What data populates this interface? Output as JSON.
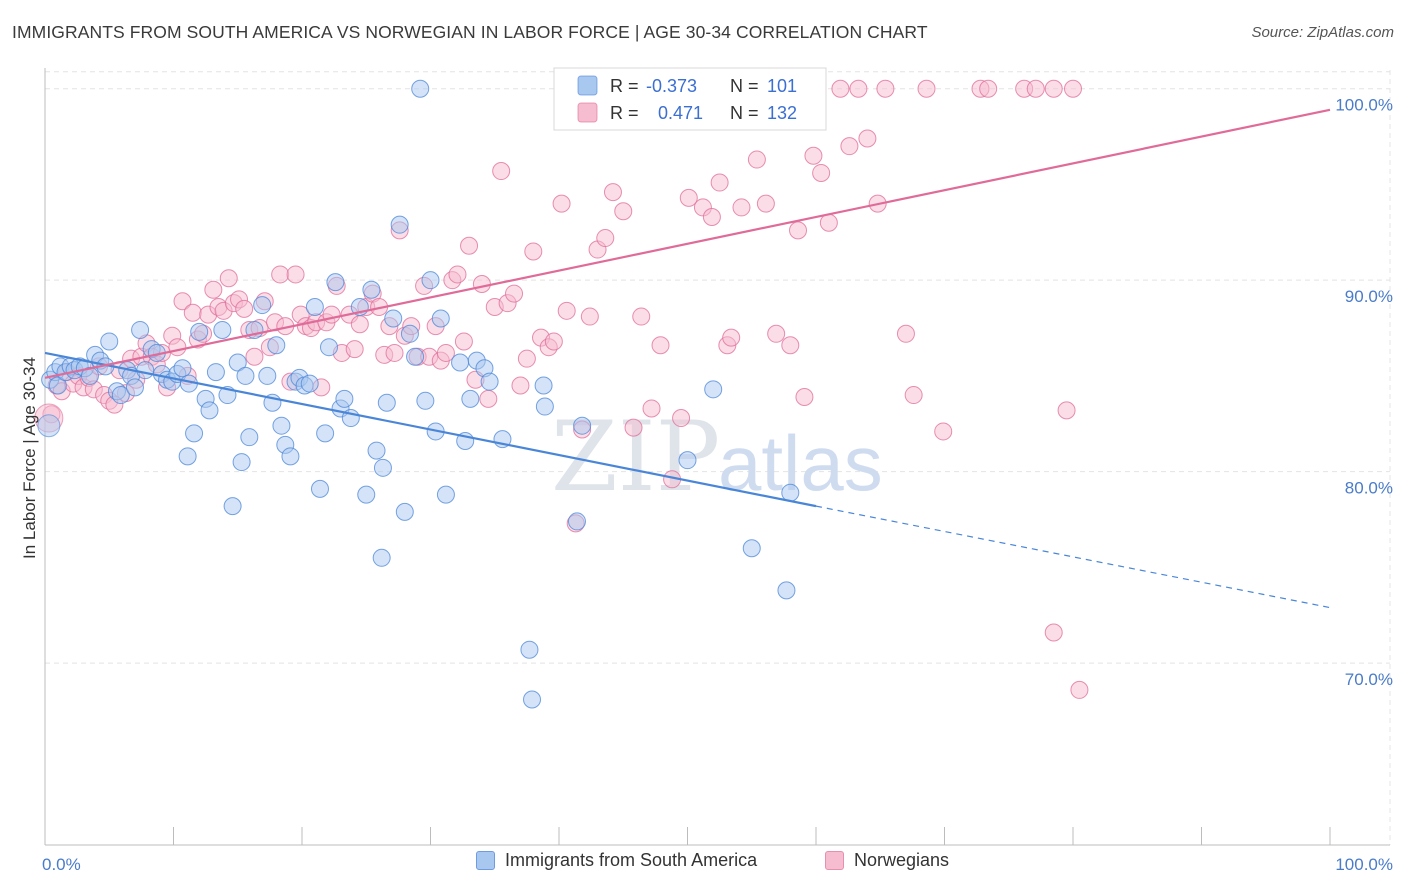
{
  "title": "IMMIGRANTS FROM SOUTH AMERICA VS NORWEGIAN IN LABOR FORCE | AGE 30-34 CORRELATION CHART",
  "source": "Source: ZipAtlas.com",
  "watermark": {
    "zip": "ZIP",
    "atlas": "atlas"
  },
  "colors": {
    "blue": "#4a86d8",
    "blue_fill": "#a9c8f0",
    "pink": "#e06b98",
    "pink_fill": "#f6bcd0",
    "tick": "#4a7cc9"
  },
  "legend": {
    "blue": {
      "r_label": "R =",
      "r_value": "-0.373",
      "n_label": "N =",
      "n_value": "101"
    },
    "pink": {
      "r_label": "R =",
      "r_value": "0.471",
      "n_label": "N =",
      "n_value": "132"
    }
  },
  "chart_data": {
    "type": "scatter",
    "xlabel": "",
    "ylabel": "In Labor Force | Age 30-34",
    "x_tick_labels": [
      "0.0%",
      "100.0%"
    ],
    "y_tick_labels": [
      "70.0%",
      "80.0%",
      "90.0%",
      "100.0%"
    ],
    "xlim": [
      0,
      100
    ],
    "ylim": [
      60.5,
      101.5
    ],
    "y_ticks": [
      70,
      80,
      90,
      100
    ],
    "grid": true,
    "legend_placement": "top-center",
    "series": [
      {
        "name": "Immigrants from South America",
        "color": "#4a86d8",
        "r": -0.373,
        "n": 101,
        "trend": {
          "x0": 0,
          "y0": 86.2,
          "x1": 60,
          "y1": 78.2,
          "dashed_to_x": 100,
          "dashed_to_y": 72.9
        },
        "points": [
          [
            0.4,
            84.8
          ],
          [
            0.8,
            85.2
          ],
          [
            1.0,
            84.5
          ],
          [
            1.2,
            85.5
          ],
          [
            1.6,
            85.2
          ],
          [
            2.0,
            85.5
          ],
          [
            2.3,
            85.3
          ],
          [
            2.7,
            85.5
          ],
          [
            3.1,
            85.4
          ],
          [
            3.5,
            85.0
          ],
          [
            3.9,
            86.1
          ],
          [
            4.3,
            85.8
          ],
          [
            4.7,
            85.5
          ],
          [
            5.0,
            86.8
          ],
          [
            5.6,
            84.2
          ],
          [
            5.9,
            84.0
          ],
          [
            6.4,
            85.3
          ],
          [
            6.7,
            85.0
          ],
          [
            7.0,
            84.4
          ],
          [
            7.4,
            87.4
          ],
          [
            7.8,
            85.3
          ],
          [
            8.3,
            86.4
          ],
          [
            8.7,
            86.2
          ],
          [
            9.1,
            85.1
          ],
          [
            9.5,
            84.8
          ],
          [
            9.9,
            84.7
          ],
          [
            10.3,
            85.1
          ],
          [
            10.7,
            85.4
          ],
          [
            11.2,
            84.6
          ],
          [
            11.6,
            82.0
          ],
          [
            11.1,
            80.8
          ],
          [
            12.0,
            87.3
          ],
          [
            12.5,
            83.8
          ],
          [
            12.8,
            83.2
          ],
          [
            13.3,
            85.2
          ],
          [
            13.8,
            87.4
          ],
          [
            14.2,
            84.0
          ],
          [
            14.6,
            78.2
          ],
          [
            15.0,
            85.7
          ],
          [
            15.3,
            80.5
          ],
          [
            15.6,
            85.0
          ],
          [
            15.9,
            81.8
          ],
          [
            16.3,
            87.4
          ],
          [
            16.9,
            88.7
          ],
          [
            17.3,
            85.0
          ],
          [
            17.7,
            83.6
          ],
          [
            18.0,
            86.6
          ],
          [
            18.4,
            82.4
          ],
          [
            18.7,
            81.4
          ],
          [
            19.1,
            80.8
          ],
          [
            19.5,
            84.7
          ],
          [
            19.8,
            84.9
          ],
          [
            20.2,
            84.5
          ],
          [
            20.6,
            84.6
          ],
          [
            21.0,
            88.6
          ],
          [
            21.4,
            79.1
          ],
          [
            21.8,
            82.0
          ],
          [
            22.1,
            86.5
          ],
          [
            22.6,
            89.9
          ],
          [
            23.0,
            83.3
          ],
          [
            23.3,
            83.8
          ],
          [
            23.8,
            82.8
          ],
          [
            24.5,
            88.6
          ],
          [
            25.0,
            78.8
          ],
          [
            25.4,
            89.5
          ],
          [
            25.8,
            81.1
          ],
          [
            26.2,
            75.5
          ],
          [
            26.3,
            80.2
          ],
          [
            26.6,
            83.6
          ],
          [
            27.1,
            88.0
          ],
          [
            27.6,
            92.9
          ],
          [
            28.0,
            77.9
          ],
          [
            28.4,
            87.2
          ],
          [
            28.8,
            86.0
          ],
          [
            29.2,
            100.0
          ],
          [
            29.6,
            83.7
          ],
          [
            30.0,
            90.0
          ],
          [
            30.4,
            82.1
          ],
          [
            30.8,
            88.0
          ],
          [
            31.2,
            78.8
          ],
          [
            32.3,
            85.7
          ],
          [
            32.7,
            81.6
          ],
          [
            33.1,
            83.8
          ],
          [
            33.6,
            85.8
          ],
          [
            34.2,
            85.4
          ],
          [
            34.6,
            84.7
          ],
          [
            35.6,
            81.7
          ],
          [
            37.7,
            70.7
          ],
          [
            37.9,
            68.1
          ],
          [
            38.8,
            84.5
          ],
          [
            38.9,
            83.4
          ],
          [
            41.4,
            77.4
          ],
          [
            41.8,
            82.4
          ],
          [
            50.0,
            80.6
          ],
          [
            52.0,
            84.3
          ],
          [
            55.0,
            76.0
          ],
          [
            57.7,
            73.8
          ],
          [
            58.0,
            78.9
          ]
        ]
      },
      {
        "name": "Norwegians",
        "color": "#e06b98",
        "r": 0.471,
        "n": 132,
        "trend": {
          "x0": 0,
          "y0": 84.9,
          "x1": 100,
          "y1": 98.9
        },
        "points": [
          [
            0.5,
            83.0
          ],
          [
            0.9,
            84.5
          ],
          [
            1.3,
            84.2
          ],
          [
            1.7,
            85.2
          ],
          [
            2.2,
            84.6
          ],
          [
            2.6,
            85.0
          ],
          [
            3.0,
            84.4
          ],
          [
            3.4,
            84.9
          ],
          [
            3.8,
            84.3
          ],
          [
            4.2,
            85.5
          ],
          [
            4.6,
            84.0
          ],
          [
            5.0,
            83.7
          ],
          [
            5.4,
            83.5
          ],
          [
            5.8,
            85.3
          ],
          [
            6.3,
            84.1
          ],
          [
            6.7,
            85.9
          ],
          [
            7.1,
            84.8
          ],
          [
            7.5,
            86.0
          ],
          [
            7.9,
            86.7
          ],
          [
            8.3,
            86.0
          ],
          [
            8.7,
            85.6
          ],
          [
            9.1,
            86.2
          ],
          [
            9.5,
            84.4
          ],
          [
            9.9,
            87.1
          ],
          [
            10.3,
            86.5
          ],
          [
            10.7,
            88.9
          ],
          [
            11.1,
            85.0
          ],
          [
            11.5,
            88.3
          ],
          [
            11.9,
            86.9
          ],
          [
            12.3,
            87.2
          ],
          [
            12.7,
            88.2
          ],
          [
            13.1,
            89.5
          ],
          [
            13.5,
            88.6
          ],
          [
            13.9,
            88.4
          ],
          [
            14.3,
            90.1
          ],
          [
            14.7,
            88.8
          ],
          [
            15.1,
            89.0
          ],
          [
            15.5,
            88.5
          ],
          [
            15.9,
            87.4
          ],
          [
            16.3,
            86.0
          ],
          [
            16.7,
            87.5
          ],
          [
            17.1,
            88.9
          ],
          [
            17.5,
            86.5
          ],
          [
            17.9,
            87.8
          ],
          [
            18.3,
            90.3
          ],
          [
            18.7,
            87.6
          ],
          [
            19.1,
            84.7
          ],
          [
            19.5,
            90.3
          ],
          [
            19.9,
            88.2
          ],
          [
            20.3,
            87.6
          ],
          [
            20.7,
            87.5
          ],
          [
            21.1,
            87.8
          ],
          [
            21.5,
            84.4
          ],
          [
            21.9,
            87.8
          ],
          [
            22.3,
            88.2
          ],
          [
            22.7,
            89.7
          ],
          [
            23.1,
            86.2
          ],
          [
            23.7,
            88.2
          ],
          [
            24.1,
            86.4
          ],
          [
            24.5,
            87.7
          ],
          [
            25.0,
            88.6
          ],
          [
            25.5,
            89.3
          ],
          [
            26.0,
            88.6
          ],
          [
            26.4,
            86.1
          ],
          [
            26.8,
            87.6
          ],
          [
            27.2,
            86.2
          ],
          [
            27.6,
            92.6
          ],
          [
            28.0,
            87.1
          ],
          [
            28.5,
            87.6
          ],
          [
            29.0,
            86.0
          ],
          [
            29.5,
            89.7
          ],
          [
            29.9,
            86.0
          ],
          [
            30.4,
            87.6
          ],
          [
            30.8,
            85.8
          ],
          [
            31.2,
            86.2
          ],
          [
            31.7,
            90.0
          ],
          [
            32.1,
            90.3
          ],
          [
            32.6,
            86.8
          ],
          [
            33.0,
            91.8
          ],
          [
            33.5,
            84.8
          ],
          [
            34.0,
            89.8
          ],
          [
            34.5,
            83.8
          ],
          [
            35.0,
            88.6
          ],
          [
            35.5,
            95.7
          ],
          [
            36.0,
            88.8
          ],
          [
            36.5,
            89.3
          ],
          [
            37.0,
            84.5
          ],
          [
            37.5,
            85.9
          ],
          [
            38.0,
            91.5
          ],
          [
            38.6,
            87.0
          ],
          [
            39.2,
            86.5
          ],
          [
            39.6,
            86.8
          ],
          [
            40.2,
            94.0
          ],
          [
            40.6,
            88.4
          ],
          [
            41.3,
            77.3
          ],
          [
            41.8,
            82.2
          ],
          [
            42.4,
            88.1
          ],
          [
            43.0,
            91.6
          ],
          [
            43.6,
            92.2
          ],
          [
            44.2,
            94.6
          ],
          [
            45.0,
            93.6
          ],
          [
            45.8,
            82.3
          ],
          [
            46.4,
            88.1
          ],
          [
            47.2,
            83.3
          ],
          [
            47.9,
            86.6
          ],
          [
            48.8,
            79.6
          ],
          [
            49.5,
            82.8
          ],
          [
            50.1,
            94.3
          ],
          [
            51.2,
            93.8
          ],
          [
            51.9,
            93.3
          ],
          [
            52.5,
            95.1
          ],
          [
            53.1,
            86.6
          ],
          [
            53.4,
            87.0
          ],
          [
            54.2,
            93.8
          ],
          [
            55.4,
            96.3
          ],
          [
            56.1,
            94.0
          ],
          [
            56.9,
            87.2
          ],
          [
            58.0,
            86.6
          ],
          [
            58.6,
            92.6
          ],
          [
            59.1,
            83.9
          ],
          [
            59.8,
            96.5
          ],
          [
            60.4,
            95.6
          ],
          [
            61.0,
            93.0
          ],
          [
            61.9,
            100.0
          ],
          [
            62.6,
            97.0
          ],
          [
            63.3,
            100.0
          ],
          [
            64.0,
            97.4
          ],
          [
            64.8,
            94.0
          ],
          [
            65.4,
            100.0
          ],
          [
            67.0,
            87.2
          ],
          [
            67.6,
            84.0
          ],
          [
            68.6,
            100.0
          ],
          [
            69.9,
            82.1
          ],
          [
            72.8,
            100.0
          ],
          [
            73.4,
            100.0
          ],
          [
            76.2,
            100.0
          ],
          [
            77.1,
            100.0
          ],
          [
            78.5,
            100.0
          ],
          [
            80.0,
            100.0
          ],
          [
            78.5,
            71.6
          ],
          [
            79.5,
            83.2
          ],
          [
            80.5,
            68.6
          ]
        ]
      }
    ]
  },
  "bottom_legend": [
    {
      "label": "Immigrants from South America"
    },
    {
      "label": "Norwegians"
    }
  ]
}
